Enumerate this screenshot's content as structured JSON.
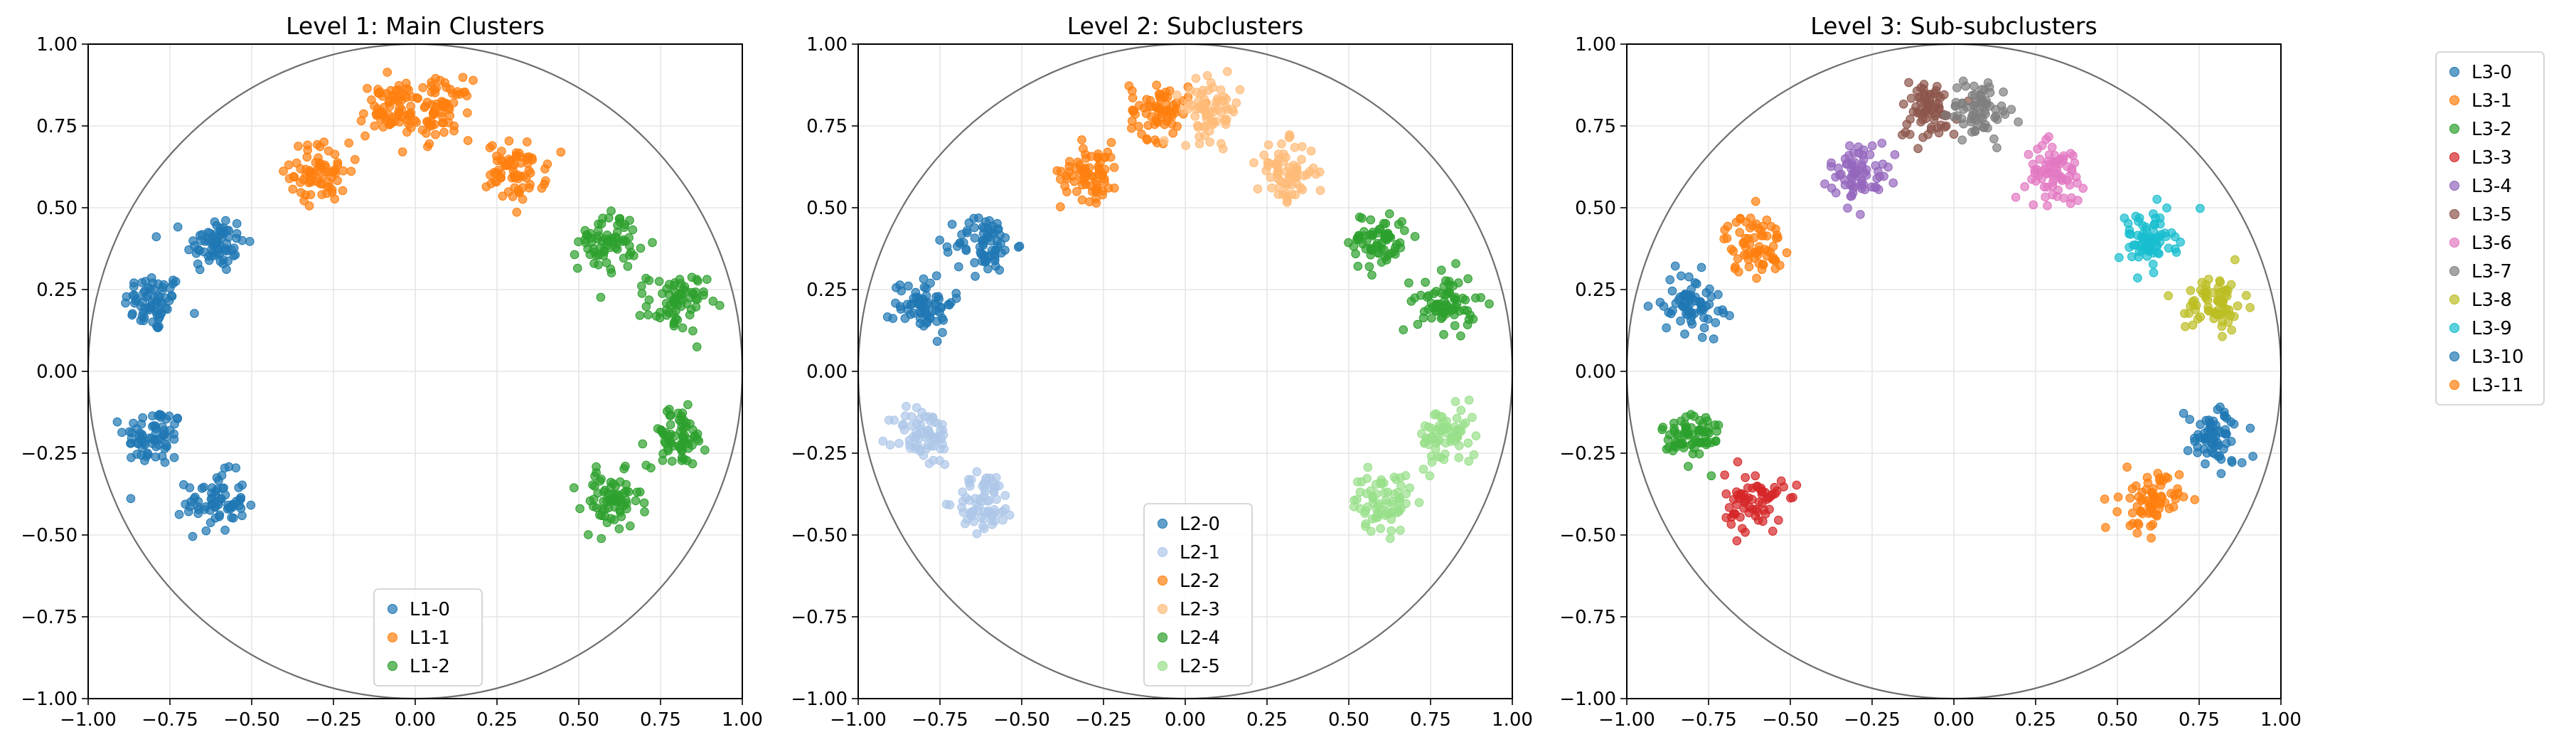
{
  "chart_data": [
    {
      "type": "scatter",
      "title": "Level 1: Main Clusters",
      "xlim": [
        -1.0,
        1.0
      ],
      "ylim": [
        -1.0,
        1.0
      ],
      "xticks": [
        "−1.00",
        "−0.75",
        "−0.50",
        "−0.25",
        "0.00",
        "0.25",
        "0.50",
        "0.75",
        "1.00"
      ],
      "yticks": [
        "−1.00",
        "−0.75",
        "−0.50",
        "−0.25",
        "0.00",
        "0.25",
        "0.50",
        "0.75",
        "1.00"
      ],
      "grid": true,
      "unit_circle": true,
      "legend": {
        "placement": "lower-center",
        "entries": [
          "L1-0",
          "L1-1",
          "L1-2"
        ]
      },
      "series": [
        {
          "name": "L1-0",
          "color": "#1f77b4",
          "centers": [
            [
              -0.8,
              0.21
            ],
            [
              -0.61,
              0.39
            ],
            [
              -0.8,
              -0.2
            ],
            [
              -0.61,
              -0.4
            ]
          ],
          "spread": 0.045,
          "points_per_center": 70
        },
        {
          "name": "L1-1",
          "color": "#ff7f0e",
          "centers": [
            [
              -0.29,
              0.61
            ],
            [
              -0.08,
              0.8
            ],
            [
              0.08,
              0.8
            ],
            [
              0.31,
              0.61
            ]
          ],
          "spread": 0.045,
          "points_per_center": 70
        },
        {
          "name": "L1-2",
          "color": "#2ca02c",
          "centers": [
            [
              0.59,
              0.4
            ],
            [
              0.8,
              0.21
            ],
            [
              0.8,
              -0.2
            ],
            [
              0.6,
              -0.4
            ]
          ],
          "spread": 0.045,
          "points_per_center": 70
        }
      ]
    },
    {
      "type": "scatter",
      "title": "Level 2: Subclusters",
      "xlim": [
        -1.0,
        1.0
      ],
      "ylim": [
        -1.0,
        1.0
      ],
      "xticks": [
        "−1.00",
        "−0.75",
        "−0.50",
        "−0.25",
        "0.00",
        "0.25",
        "0.50",
        "0.75",
        "1.00"
      ],
      "yticks": [
        "−1.00",
        "−0.75",
        "−0.50",
        "−0.25",
        "0.00",
        "0.25",
        "0.50",
        "0.75",
        "1.00"
      ],
      "grid": true,
      "unit_circle": true,
      "legend": {
        "placement": "lower-center",
        "entries": [
          "L2-0",
          "L2-1",
          "L2-2",
          "L2-3",
          "L2-4",
          "L2-5"
        ]
      },
      "series": [
        {
          "name": "L2-0",
          "color": "#1f77b4",
          "centers": [
            [
              -0.8,
              0.21
            ],
            [
              -0.61,
              0.39
            ]
          ],
          "spread": 0.045,
          "points_per_center": 70
        },
        {
          "name": "L2-1",
          "color": "#aec7e8",
          "centers": [
            [
              -0.8,
              -0.2
            ],
            [
              -0.61,
              -0.4
            ]
          ],
          "spread": 0.045,
          "points_per_center": 70
        },
        {
          "name": "L2-2",
          "color": "#ff7f0e",
          "centers": [
            [
              -0.29,
              0.61
            ],
            [
              -0.08,
              0.8
            ]
          ],
          "spread": 0.045,
          "points_per_center": 70
        },
        {
          "name": "L2-3",
          "color": "#ffbb78",
          "centers": [
            [
              0.08,
              0.8
            ],
            [
              0.31,
              0.61
            ]
          ],
          "spread": 0.045,
          "points_per_center": 70
        },
        {
          "name": "L2-4",
          "color": "#2ca02c",
          "centers": [
            [
              0.59,
              0.4
            ],
            [
              0.8,
              0.21
            ]
          ],
          "spread": 0.045,
          "points_per_center": 70
        },
        {
          "name": "L2-5",
          "color": "#98df8a",
          "centers": [
            [
              0.8,
              -0.2
            ],
            [
              0.6,
              -0.4
            ]
          ],
          "spread": 0.045,
          "points_per_center": 70
        }
      ]
    },
    {
      "type": "scatter",
      "title": "Level 3: Sub-subclusters",
      "xlim": [
        -1.0,
        1.0
      ],
      "ylim": [
        -1.0,
        1.0
      ],
      "xticks": [
        "−1.00",
        "−0.75",
        "−0.50",
        "−0.25",
        "0.00",
        "0.25",
        "0.50",
        "0.75",
        "1.00"
      ],
      "yticks": [
        "−1.00",
        "−0.75",
        "−0.50",
        "−0.25",
        "0.00",
        "0.25",
        "0.50",
        "0.75",
        "1.00"
      ],
      "grid": true,
      "unit_circle": true,
      "legend": {
        "placement": "outside-right",
        "entries": [
          "L3-0",
          "L3-1",
          "L3-2",
          "L3-3",
          "L3-4",
          "L3-5",
          "L3-6",
          "L3-7",
          "L3-8",
          "L3-9",
          "L3-10",
          "L3-11"
        ]
      },
      "series": [
        {
          "name": "L3-0",
          "color": "#1f77b4",
          "centers": [
            [
              -0.8,
              0.21
            ]
          ],
          "spread": 0.045,
          "points_per_center": 70
        },
        {
          "name": "L3-1",
          "color": "#ff7f0e",
          "centers": [
            [
              -0.61,
              0.39
            ]
          ],
          "spread": 0.045,
          "points_per_center": 70
        },
        {
          "name": "L3-2",
          "color": "#2ca02c",
          "centers": [
            [
              -0.8,
              -0.2
            ]
          ],
          "spread": 0.045,
          "points_per_center": 70
        },
        {
          "name": "L3-3",
          "color": "#d62728",
          "centers": [
            [
              -0.61,
              -0.4
            ]
          ],
          "spread": 0.045,
          "points_per_center": 70
        },
        {
          "name": "L3-4",
          "color": "#9467bd",
          "centers": [
            [
              -0.29,
              0.61
            ]
          ],
          "spread": 0.045,
          "points_per_center": 70
        },
        {
          "name": "L3-5",
          "color": "#8c564b",
          "centers": [
            [
              -0.08,
              0.8
            ]
          ],
          "spread": 0.045,
          "points_per_center": 70
        },
        {
          "name": "L3-6",
          "color": "#e377c2",
          "centers": [
            [
              0.31,
              0.61
            ]
          ],
          "spread": 0.045,
          "points_per_center": 70
        },
        {
          "name": "L3-7",
          "color": "#7f7f7f",
          "centers": [
            [
              0.08,
              0.8
            ]
          ],
          "spread": 0.045,
          "points_per_center": 70
        },
        {
          "name": "L3-8",
          "color": "#bcbd22",
          "centers": [
            [
              0.8,
              0.21
            ]
          ],
          "spread": 0.045,
          "points_per_center": 70
        },
        {
          "name": "L3-9",
          "color": "#17becf",
          "centers": [
            [
              0.59,
              0.4
            ]
          ],
          "spread": 0.045,
          "points_per_center": 70
        },
        {
          "name": "L3-10",
          "color": "#1f77b4",
          "centers": [
            [
              0.8,
              -0.2
            ]
          ],
          "spread": 0.045,
          "points_per_center": 70
        },
        {
          "name": "L3-11",
          "color": "#ff7f0e",
          "centers": [
            [
              0.6,
              -0.4
            ]
          ],
          "spread": 0.045,
          "points_per_center": 70
        }
      ]
    }
  ]
}
